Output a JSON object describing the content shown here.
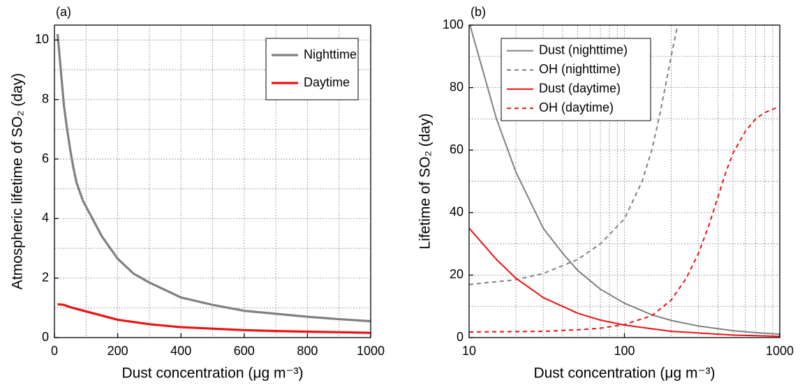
{
  "chart_data": [
    {
      "type": "line",
      "label": "(a)",
      "xlabel": "Dust concentration (μg m⁻³)",
      "ylabel": "Atmospheric lifetime of SO₂ (day)",
      "xscale": "linear",
      "xlim": [
        0,
        1000
      ],
      "ylim": [
        0,
        10.5
      ],
      "xticks": [
        0,
        200,
        400,
        600,
        800,
        1000
      ],
      "yticks": [
        0,
        2,
        4,
        6,
        8,
        10
      ],
      "xgrid": [
        100,
        200,
        300,
        400,
        500,
        600,
        700,
        800,
        900
      ],
      "ygrid": [
        1,
        2,
        3,
        4,
        5,
        6,
        7,
        8,
        9,
        10
      ],
      "legend": "upper right",
      "series": [
        {
          "name": "Nighttime",
          "color": "#808080",
          "dash": false,
          "x": [
            10,
            20,
            30,
            40,
            50,
            60,
            70,
            80,
            90,
            100,
            150,
            200,
            250,
            300,
            400,
            500,
            600,
            700,
            800,
            900,
            1000
          ],
          "values": [
            10.2,
            9.0,
            7.8,
            7.0,
            6.3,
            5.7,
            5.2,
            4.9,
            4.6,
            4.4,
            3.4,
            2.65,
            2.15,
            1.85,
            1.35,
            1.1,
            0.9,
            0.8,
            0.7,
            0.62,
            0.55
          ]
        },
        {
          "name": "Daytime",
          "color": "#ee1111",
          "dash": false,
          "x": [
            10,
            30,
            50,
            100,
            200,
            300,
            400,
            500,
            600,
            700,
            800,
            900,
            1000
          ],
          "values": [
            1.12,
            1.1,
            1.02,
            0.88,
            0.6,
            0.45,
            0.35,
            0.3,
            0.25,
            0.22,
            0.2,
            0.18,
            0.16
          ]
        }
      ]
    },
    {
      "type": "line",
      "label": "(b)",
      "xlabel": "Dust concentration (μg m⁻³)",
      "ylabel": "Lifetime of SO₂ (day)",
      "xscale": "log",
      "xlim": [
        10,
        1000
      ],
      "ylim": [
        0,
        100
      ],
      "xticks": [
        10,
        100,
        1000
      ],
      "yticks": [
        0,
        20,
        40,
        60,
        80,
        100
      ],
      "xgrid": [
        20,
        30,
        40,
        50,
        60,
        70,
        80,
        90,
        100,
        200,
        300,
        400,
        500,
        600,
        700,
        800,
        900
      ],
      "ygrid": [
        10,
        20,
        30,
        40,
        50,
        60,
        70,
        80,
        90
      ],
      "legend": "upper left",
      "series": [
        {
          "name": "Dust (nighttime)",
          "color": "#808080",
          "dash": false,
          "x": [
            10,
            15,
            20,
            30,
            40,
            50,
            70,
            100,
            150,
            200,
            300,
            500,
            700,
            1000
          ],
          "values": [
            101,
            70,
            53,
            35,
            27,
            21.5,
            15.5,
            11,
            7.3,
            5.5,
            3.7,
            2.2,
            1.6,
            1.1
          ]
        },
        {
          "name": "OH (nighttime)",
          "color": "#808080",
          "dash": true,
          "x": [
            10,
            20,
            30,
            50,
            70,
            100,
            130,
            150,
            170,
            200,
            220
          ],
          "values": [
            17,
            18.5,
            20.5,
            25,
            30,
            38,
            50,
            60,
            72,
            90,
            100
          ]
        },
        {
          "name": "Dust (daytime)",
          "color": "#ee1111",
          "dash": false,
          "x": [
            10,
            15,
            20,
            30,
            50,
            70,
            100,
            200,
            500,
            1000
          ],
          "values": [
            35,
            25,
            19,
            12.8,
            7.8,
            5.6,
            4,
            2,
            0.8,
            0.4
          ]
        },
        {
          "name": "OH (daytime)",
          "color": "#ee1111",
          "dash": true,
          "x": [
            10,
            30,
            50,
            70,
            100,
            150,
            200,
            250,
            300,
            350,
            400,
            450,
            500,
            600,
            700,
            800,
            1000
          ],
          "values": [
            1.8,
            2,
            2.5,
            3,
            4.2,
            7,
            12,
            19,
            27,
            36,
            45,
            53,
            59,
            66,
            70,
            72,
            74
          ]
        }
      ]
    }
  ]
}
